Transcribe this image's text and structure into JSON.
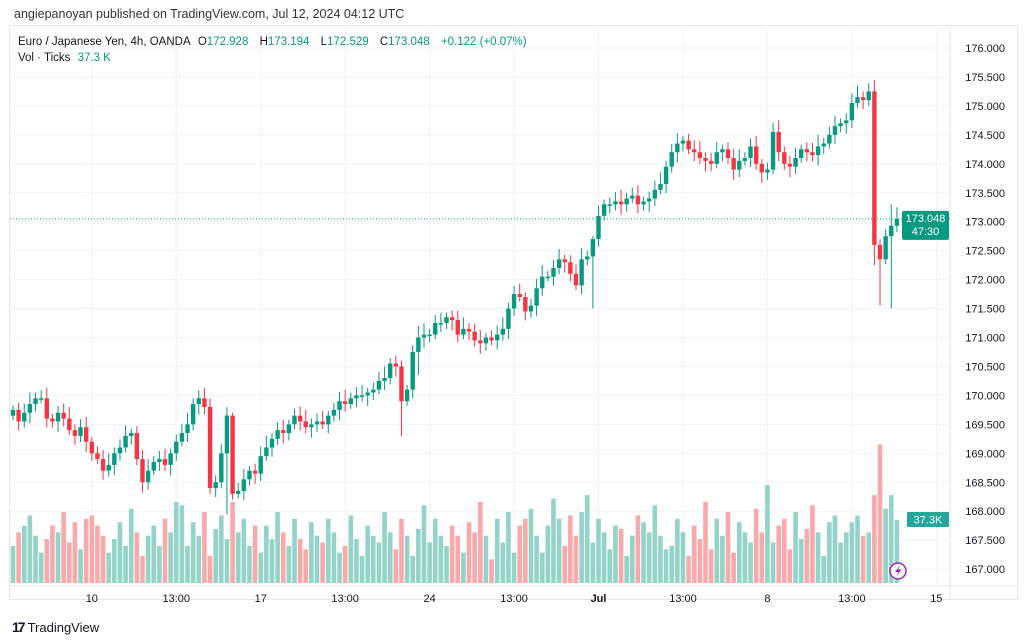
{
  "publisher": "angiepanoyan published on TradingView.com, Jul 12, 2024 04:12 UTC",
  "legend": {
    "symbol": "Euro / Japanese Yen, 4h, OANDA",
    "o_label": "O",
    "o": "172.928",
    "h_label": "H",
    "h": "173.194",
    "l_label": "L",
    "l": "172.529",
    "c_label": "C",
    "c": "173.048",
    "change": "+0.122 (+0.07%)",
    "vol_label": "Vol · Ticks",
    "vol": "37.3 K"
  },
  "colors": {
    "up": "#089981",
    "down": "#F23645",
    "vol_up": "#93d3c8",
    "vol_down": "#f8a9ab",
    "grid": "#f0f3fa",
    "alert": "#9c27b0"
  },
  "footer": {
    "brand": "TradingView",
    "logo": "17"
  },
  "chart_data": {
    "type": "candlestick",
    "title": "Euro / Japanese Yen, 4h, OANDA",
    "ylim": [
      166.9,
      176.3
    ],
    "yticks": [
      "176.000",
      "175.500",
      "175.000",
      "174.500",
      "174.000",
      "173.500",
      "173.000",
      "172.500",
      "172.000",
      "171.500",
      "171.000",
      "170.500",
      "170.000",
      "169.500",
      "169.000",
      "168.500",
      "168.000",
      "167.500",
      "167.000"
    ],
    "xticks": [
      {
        "label": "10",
        "index": 14,
        "bold": false
      },
      {
        "label": "13:00",
        "index": 29,
        "bold": false
      },
      {
        "label": "17",
        "index": 44,
        "bold": false
      },
      {
        "label": "13:00",
        "index": 59,
        "bold": false
      },
      {
        "label": "24",
        "index": 74,
        "bold": false
      },
      {
        "label": "13:00",
        "index": 89,
        "bold": false
      },
      {
        "label": "Jul",
        "index": 104,
        "bold": true
      },
      {
        "label": "13:00",
        "index": 119,
        "bold": false
      },
      {
        "label": "8",
        "index": 134,
        "bold": false
      },
      {
        "label": "13:00",
        "index": 149,
        "bold": false
      },
      {
        "label": "15",
        "index": 164,
        "bold": false
      }
    ],
    "last_price": "173.048",
    "countdown": "47:30",
    "last_volume": "37.3K",
    "last_volume_value": 37.3,
    "volume_unit": "K",
    "closes": [
      169.75,
      169.55,
      169.7,
      169.85,
      169.95,
      169.95,
      169.6,
      169.55,
      169.7,
      169.6,
      169.4,
      169.3,
      169.45,
      169.2,
      169.0,
      168.9,
      168.7,
      168.8,
      169.0,
      169.1,
      169.3,
      169.35,
      168.9,
      168.5,
      168.7,
      168.85,
      168.9,
      168.8,
      169.0,
      169.2,
      169.35,
      169.5,
      169.85,
      169.95,
      169.8,
      168.4,
      168.5,
      169.0,
      169.65,
      168.3,
      168.35,
      168.55,
      168.7,
      168.65,
      168.95,
      169.1,
      169.25,
      169.4,
      169.35,
      169.5,
      169.65,
      169.55,
      169.45,
      169.5,
      169.55,
      169.5,
      169.65,
      169.75,
      169.9,
      169.85,
      169.95,
      170.0,
      170.0,
      170.05,
      170.1,
      170.25,
      170.3,
      170.55,
      170.5,
      169.9,
      170.1,
      170.75,
      171.0,
      171.05,
      171.05,
      171.25,
      171.25,
      171.35,
      171.3,
      171.05,
      171.15,
      171.1,
      170.95,
      170.9,
      171.0,
      170.95,
      171.05,
      171.15,
      171.5,
      171.75,
      171.7,
      171.45,
      171.55,
      171.85,
      172.05,
      172.05,
      172.2,
      172.35,
      172.3,
      172.1,
      171.9,
      172.35,
      172.4,
      172.7,
      173.1,
      173.3,
      173.3,
      173.35,
      173.3,
      173.4,
      173.45,
      173.3,
      173.35,
      173.4,
      173.55,
      173.65,
      173.95,
      174.2,
      174.35,
      174.4,
      174.25,
      174.2,
      174.1,
      174.05,
      174.0,
      174.2,
      174.25,
      174.1,
      173.9,
      174.05,
      174.1,
      174.3,
      174.0,
      173.85,
      173.9,
      174.55,
      174.2,
      174.0,
      173.95,
      174.1,
      174.25,
      174.2,
      174.15,
      174.3,
      174.35,
      174.5,
      174.65,
      174.7,
      174.75,
      175.05,
      175.15,
      175.1,
      175.25,
      172.6,
      172.35,
      172.75,
      172.93,
      173.05
    ],
    "first_open": 169.65,
    "big_wicks": {
      "35": [
        169.95,
        168.3
      ],
      "38": [
        169.8,
        167.95
      ],
      "39": [
        169.7,
        168.2
      ],
      "69": [
        170.6,
        169.3
      ],
      "72": [
        171.2,
        170.35
      ],
      "103": [
        172.75,
        171.5
      ],
      "153": [
        175.45,
        172.25
      ],
      "154": [
        172.7,
        171.55
      ],
      "156": [
        173.3,
        171.5
      ]
    },
    "volumes": [
      22,
      30,
      34,
      40,
      28,
      18,
      26,
      34,
      30,
      42,
      24,
      36,
      20,
      38,
      40,
      34,
      28,
      18,
      26,
      36,
      22,
      44,
      30,
      16,
      28,
      34,
      22,
      38,
      30,
      48,
      46,
      22,
      36,
      28,
      42,
      16,
      32,
      40,
      26,
      48,
      30,
      38,
      22,
      34,
      18,
      34,
      26,
      42,
      30,
      22,
      38,
      26,
      20,
      36,
      28,
      24,
      38,
      30,
      18,
      22,
      40,
      26,
      16,
      34,
      28,
      24,
      42,
      30,
      20,
      38,
      28,
      16,
      32,
      46,
      24,
      38,
      28,
      22,
      34,
      28,
      18,
      36,
      30,
      48,
      28,
      14,
      38,
      24,
      42,
      18,
      34,
      38,
      44,
      28,
      18,
      34,
      50,
      38,
      22,
      40,
      28,
      42,
      52,
      24,
      38,
      30,
      20,
      34,
      32,
      16,
      28,
      40,
      36,
      30,
      46,
      28,
      20,
      22,
      38,
      30,
      16,
      34,
      26,
      48,
      20,
      38,
      28,
      42,
      18,
      36,
      30,
      24,
      44,
      30,
      58,
      24,
      34,
      38,
      20,
      42,
      26,
      32,
      46,
      30,
      16,
      36,
      40,
      24,
      30,
      36,
      40,
      28,
      30,
      52,
      82,
      44,
      52,
      37.3
    ]
  }
}
